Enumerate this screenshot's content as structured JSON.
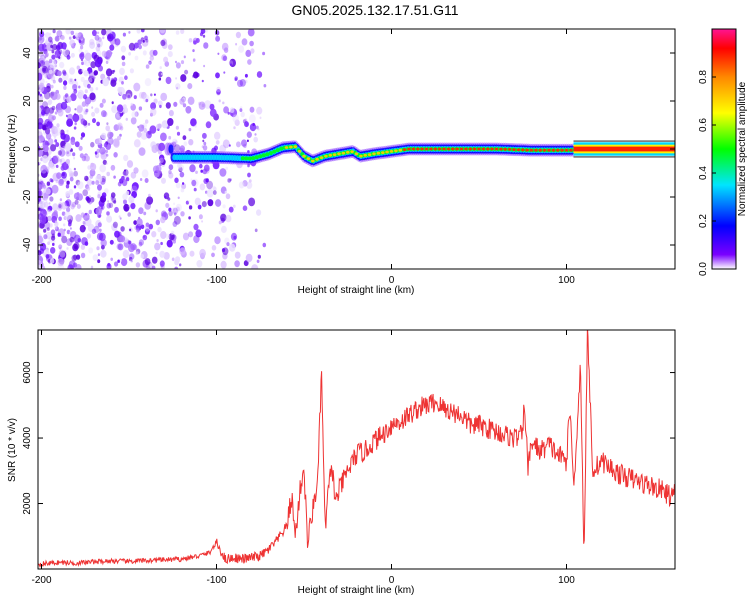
{
  "title": "GN05.2025.132.17.51.G11",
  "chart_data": [
    {
      "type": "heatmap",
      "xlabel": "Height of straight line (km)",
      "ylabel": "Frequency (Hz)",
      "xlim": [
        -202,
        162
      ],
      "ylim": [
        -50,
        50
      ],
      "xticks": [
        -200,
        -100,
        0,
        100
      ],
      "yticks": [
        -40,
        -20,
        0,
        20,
        40
      ],
      "colorbar": {
        "label": "Normalized spectral amplitude",
        "range": [
          0,
          1
        ],
        "ticks": [
          "0.0",
          "0.2",
          "0.4",
          "0.6",
          "0.8"
        ],
        "tick_values": [
          0.0,
          0.2,
          0.4,
          0.6,
          0.8
        ],
        "colors": [
          "#ffffff",
          "#7a00ff",
          "#0000ff",
          "#00e5ff",
          "#00ff00",
          "#ffff00",
          "#ff8800",
          "#ff0000",
          "#ff1493"
        ]
      },
      "signal_track": [
        {
          "x": -125,
          "f": -3.5
        },
        {
          "x": -100,
          "f": -3.5
        },
        {
          "x": -80,
          "f": -4
        },
        {
          "x": -70,
          "f": -2
        },
        {
          "x": -62,
          "f": 0.5
        },
        {
          "x": -55,
          "f": 1
        },
        {
          "x": -50,
          "f": -3
        },
        {
          "x": -45,
          "f": -5
        },
        {
          "x": -38,
          "f": -3
        },
        {
          "x": -30,
          "f": -2
        },
        {
          "x": -22,
          "f": -1
        },
        {
          "x": -18,
          "f": -3
        },
        {
          "x": -10,
          "f": -2
        },
        {
          "x": 0,
          "f": -1
        },
        {
          "x": 10,
          "f": 0
        },
        {
          "x": 30,
          "f": 0
        },
        {
          "x": 60,
          "f": 0
        },
        {
          "x": 80,
          "f": -0.5
        },
        {
          "x": 100,
          "f": -0.5
        },
        {
          "x": 162,
          "f": 0
        }
      ]
    },
    {
      "type": "line",
      "xlabel": "Height of straight line (km)",
      "ylabel": "SNR (10 * v/v)",
      "xlim": [
        -202,
        162
      ],
      "ylim": [
        0,
        7300
      ],
      "xticks": [
        -200,
        -100,
        0,
        100
      ],
      "yticks": [
        2000,
        4000,
        6000
      ],
      "color": "#ee3333",
      "series": [
        {
          "x": [
            -202,
            -190,
            -180,
            -170,
            -160,
            -150,
            -140,
            -130,
            -120,
            -110,
            -104,
            -100,
            -95,
            -90,
            -85,
            -80,
            -75,
            -70,
            -65,
            -60,
            -57,
            -55,
            -52,
            -50,
            -48,
            -45,
            -42,
            -40,
            -38,
            -36,
            -34,
            -32,
            -30,
            -25,
            -20,
            -15,
            -10,
            -5,
            0,
            5,
            10,
            15,
            20,
            25,
            30,
            35,
            40,
            45,
            50,
            55,
            60,
            65,
            70,
            75,
            76,
            78,
            80,
            85,
            90,
            95,
            100,
            102,
            104,
            106,
            108,
            110,
            112,
            115,
            120,
            125,
            130,
            135,
            140,
            145,
            150,
            155,
            160,
            162
          ],
          "y": [
            150,
            200,
            180,
            220,
            250,
            230,
            260,
            280,
            300,
            400,
            500,
            800,
            300,
            350,
            300,
            350,
            400,
            600,
            900,
            1300,
            2200,
            1000,
            2500,
            3100,
            800,
            1800,
            2800,
            6100,
            1200,
            2400,
            3200,
            2000,
            2400,
            3000,
            3500,
            3600,
            3900,
            4100,
            4400,
            4500,
            4700,
            4900,
            5000,
            5100,
            4900,
            4800,
            4700,
            4400,
            4400,
            4300,
            4200,
            4100,
            4000,
            4100,
            5200,
            3000,
            3900,
            3600,
            3800,
            3500,
            3300,
            5000,
            2500,
            4200,
            6300,
            300,
            7300,
            3000,
            3300,
            3100,
            2900,
            2800,
            2700,
            2600,
            2500,
            2400,
            2200,
            2300
          ]
        }
      ]
    }
  ]
}
